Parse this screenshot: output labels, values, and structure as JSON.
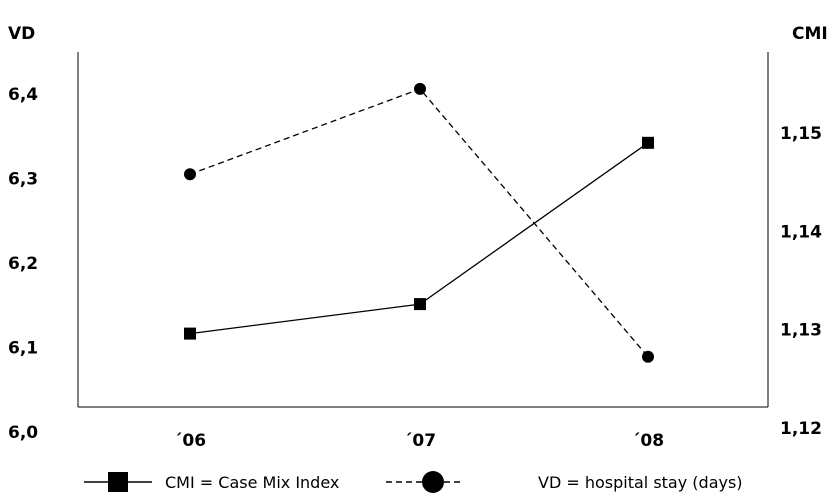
{
  "chart_data": {
    "type": "line",
    "categories": [
      "´06",
      "´07",
      "´08"
    ],
    "left_axis": {
      "label": "VD",
      "ylim": [
        6.0,
        6.45
      ],
      "ticks": [
        "6,0",
        "6,1",
        "6,2",
        "6,3",
        "6,4"
      ],
      "tick_values": [
        6.0,
        6.1,
        6.2,
        6.3,
        6.4
      ]
    },
    "right_axis": {
      "label": "CMI",
      "ylim": [
        1.12,
        1.155
      ],
      "ticks": [
        "1,12",
        "1,13",
        "1,14",
        "1,15"
      ],
      "tick_values": [
        1.12,
        1.13,
        1.14,
        1.15
      ]
    },
    "series": [
      {
        "name": "CMI = Case Mix Index",
        "axis": "right",
        "marker": "square",
        "dash": "solid",
        "values": [
          1.1296,
          1.1326,
          1.149
        ]
      },
      {
        "name": "VD = hospital stay (days)",
        "axis": "left",
        "marker": "circle",
        "dash": "dashed",
        "values": [
          6.305,
          6.406,
          6.089
        ]
      }
    ],
    "grid": false,
    "legend": "bottom"
  }
}
